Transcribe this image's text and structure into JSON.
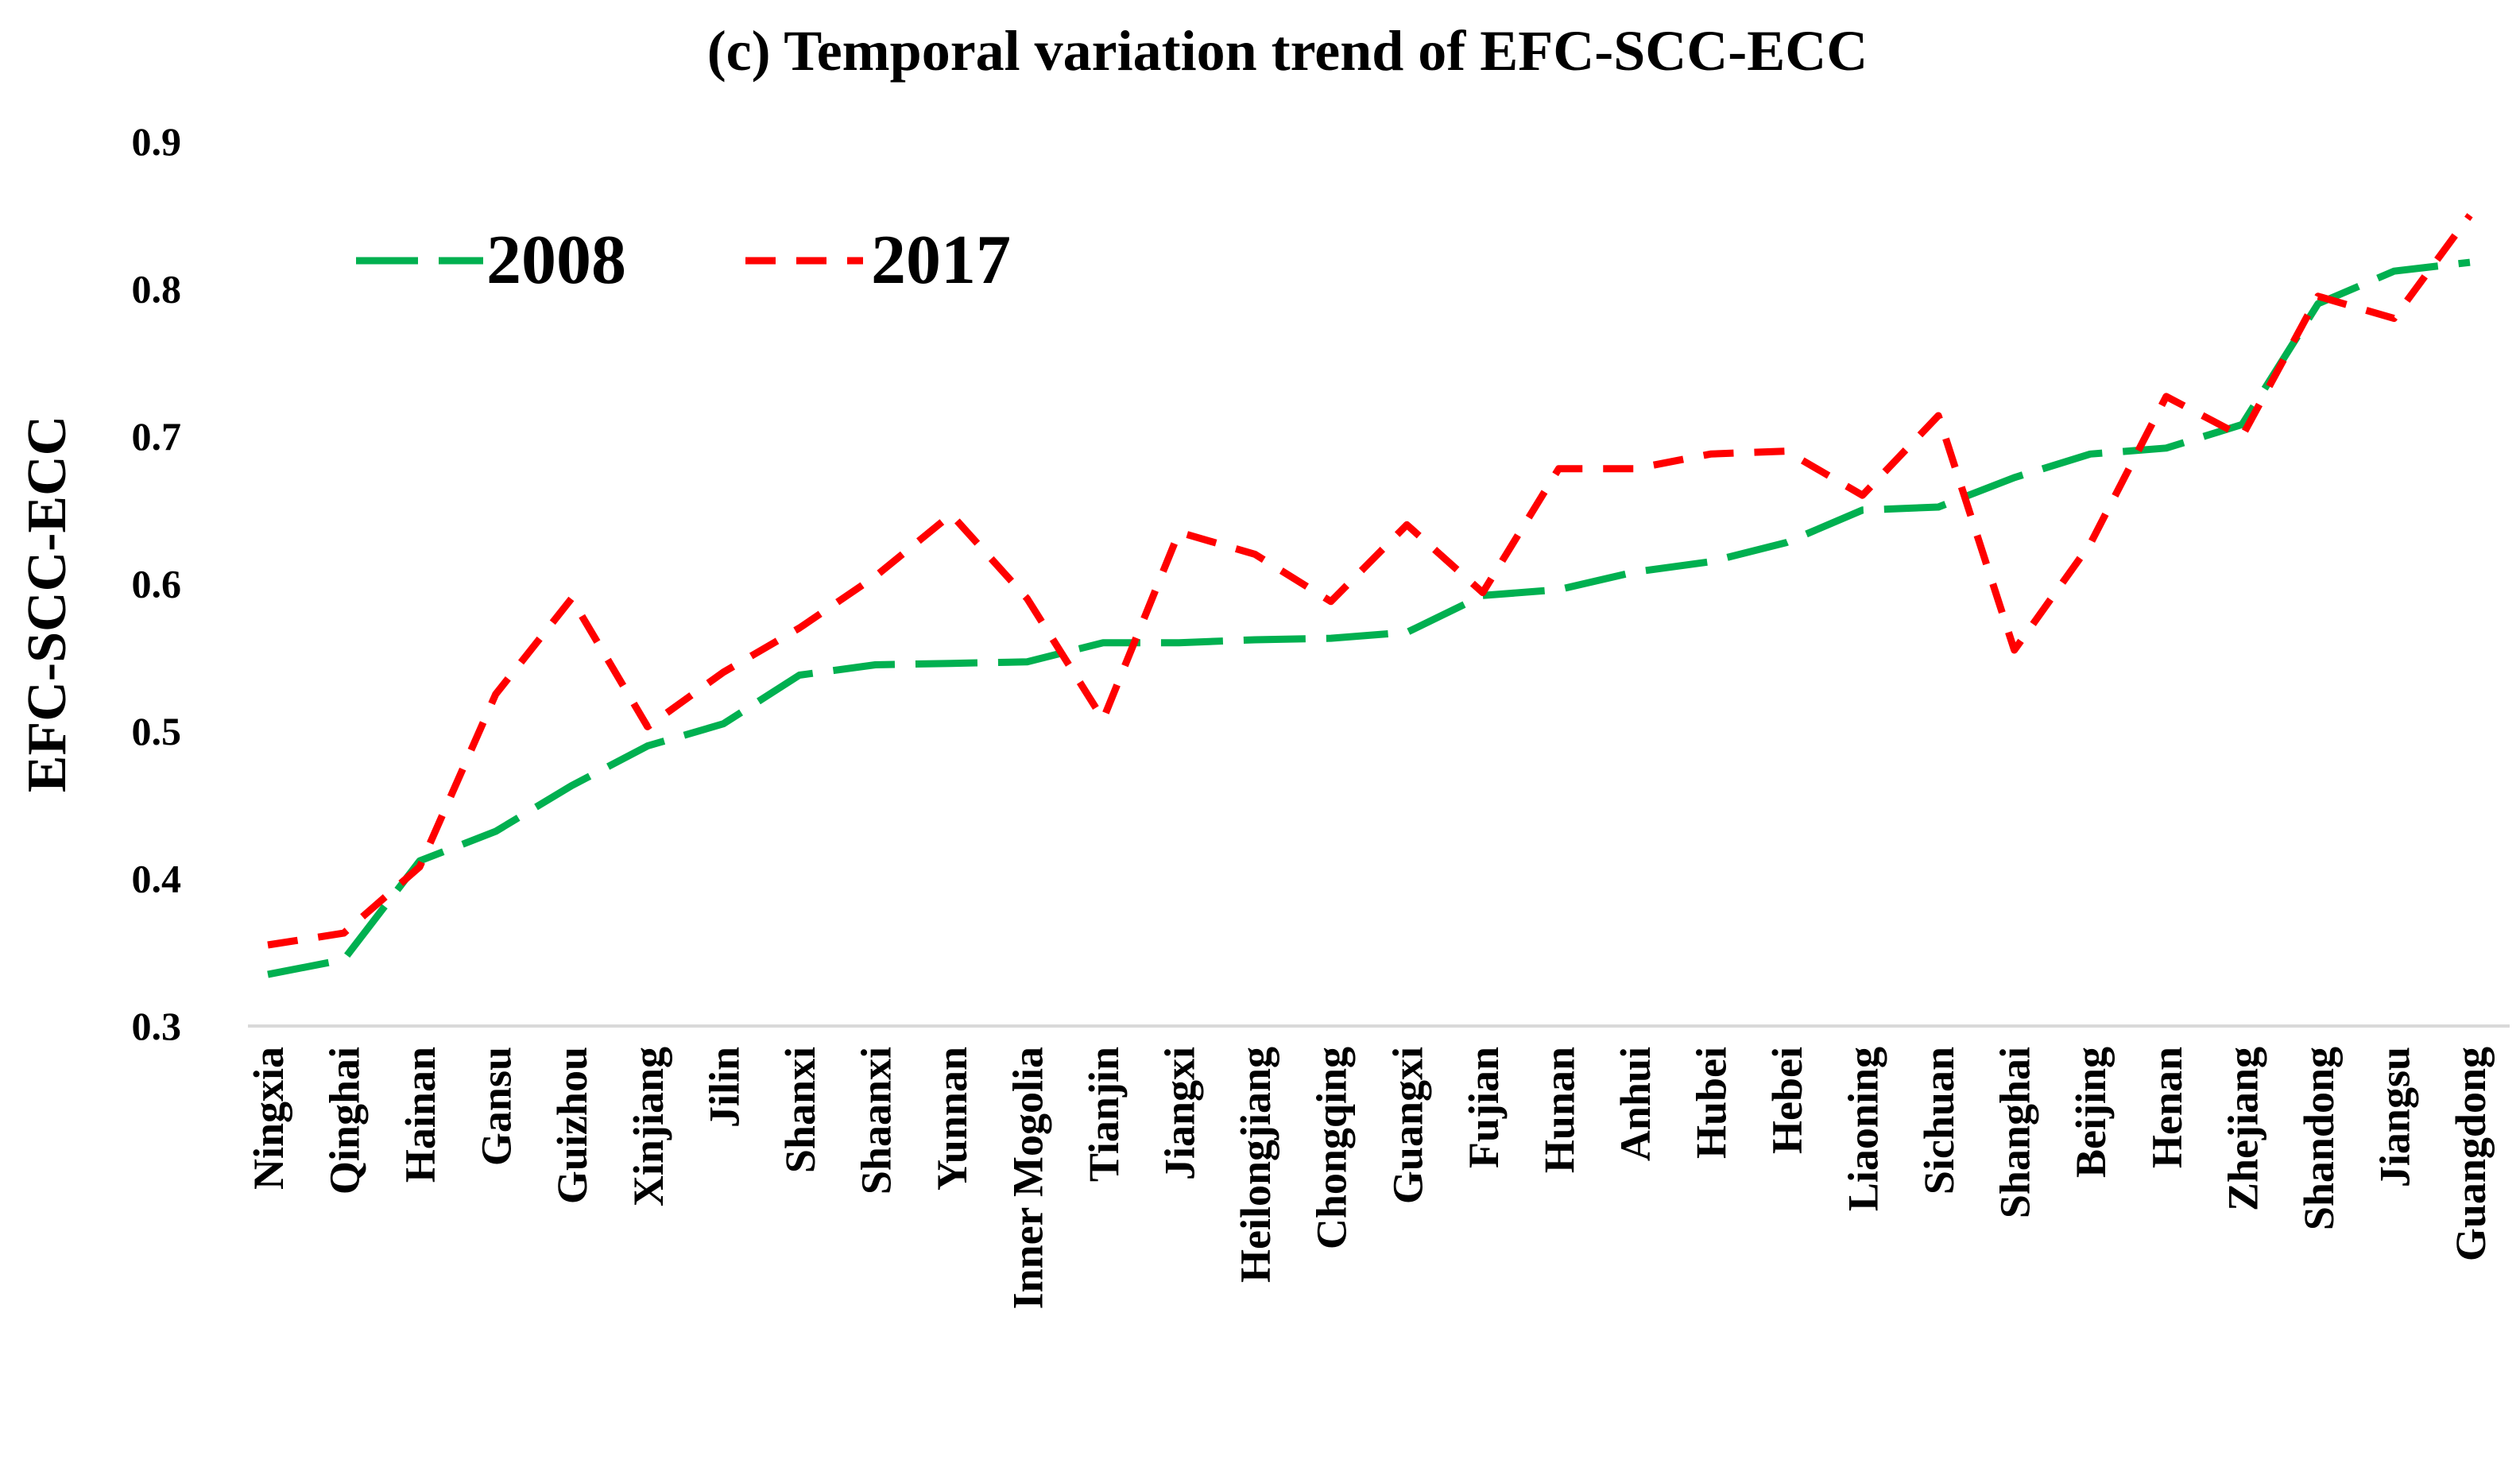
{
  "chart_data": {
    "type": "line",
    "title": "(c)  Temporal variation trend of EFC-SCC-ECC",
    "xlabel": "",
    "ylabel": "EFC-SCC-ECC",
    "ylim": [
      0.3,
      0.9
    ],
    "yticks": [
      0.3,
      0.4,
      0.5,
      0.6,
      0.7,
      0.8,
      0.9
    ],
    "ytick_labels": [
      "0.3",
      "0.4",
      "0.5",
      "0.6",
      "0.7",
      "0.8",
      "0.9"
    ],
    "grid": false,
    "legend_position": "top-left",
    "categories": [
      "Ningxia",
      "Qinghai",
      "Hainan",
      "Gansu",
      "Guizhou",
      "Xinjiang",
      "Jilin",
      "Shanxi",
      "Shaanxi",
      "Yunnan",
      "Inner Mogolia",
      "Tianjin",
      "Jiangxi",
      "Heilongjiang",
      "Chongqing",
      "Guangxi",
      "Fujian",
      "Hunan",
      "Anhui",
      "Hubei",
      "Hebei",
      "Liaoning",
      "Sichuan",
      "Shanghai",
      "Beijing",
      "Henan",
      "Zhejiang",
      "Shandong",
      "Jiangsu",
      "Guangdong"
    ],
    "series": [
      {
        "name": "2008",
        "color": "#00b050",
        "dash": "long-dash",
        "values": [
          0.335,
          0.345,
          0.412,
          0.432,
          0.463,
          0.49,
          0.505,
          0.538,
          0.545,
          0.546,
          0.547,
          0.56,
          0.56,
          0.562,
          0.563,
          0.567,
          0.592,
          0.596,
          0.608,
          0.615,
          0.628,
          0.65,
          0.652,
          0.672,
          0.688,
          0.692,
          0.708,
          0.79,
          0.812,
          0.818
        ]
      },
      {
        "name": "2017",
        "color": "#ff0000",
        "dash": "dash",
        "values": [
          0.355,
          0.363,
          0.408,
          0.525,
          0.59,
          0.503,
          0.54,
          0.57,
          0.605,
          0.647,
          0.59,
          0.508,
          0.635,
          0.62,
          0.588,
          0.64,
          0.594,
          0.678,
          0.678,
          0.688,
          0.69,
          0.66,
          0.714,
          0.555,
          0.627,
          0.727,
          0.7,
          0.795,
          0.78,
          0.85
        ]
      }
    ]
  }
}
